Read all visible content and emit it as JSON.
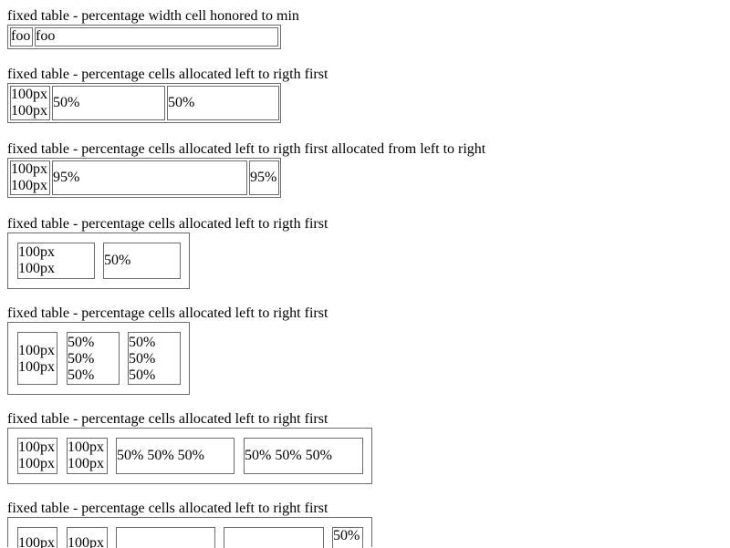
{
  "tests": [
    {
      "caption": "fixed table - percentage width cell honored to min",
      "cells": [
        "foo",
        "foo"
      ]
    },
    {
      "caption": "fixed table - percentage cells allocated left to rigth first",
      "cells": [
        [
          "100px",
          "100px"
        ],
        "50%",
        "50%"
      ]
    },
    {
      "caption": "fixed table - percentage cells allocated left to rigth first allocated from left to right",
      "cells": [
        [
          "100px",
          "100px"
        ],
        "95%",
        "95%"
      ]
    },
    {
      "caption": "fixed table - percentage cells allocated left to rigth first",
      "cells": [
        [
          "100px",
          "100px"
        ],
        "50%"
      ]
    },
    {
      "caption": "fixed table - percentage cells allocated left to right first",
      "cells": [
        [
          "100px",
          "100px"
        ],
        [
          "50%",
          "50%",
          "50%"
        ],
        [
          "50%",
          "50%",
          "50%"
        ]
      ]
    },
    {
      "caption": "fixed table - percentage cells allocated left to right first",
      "cells": [
        [
          "100px",
          "100px"
        ],
        [
          "100px",
          "100px"
        ],
        "50% 50% 50%",
        "50% 50% 50%"
      ]
    },
    {
      "caption": "fixed table - percentage cells allocated left to right first",
      "cells": [
        "100px",
        "100px",
        "",
        "",
        "50%"
      ]
    }
  ]
}
